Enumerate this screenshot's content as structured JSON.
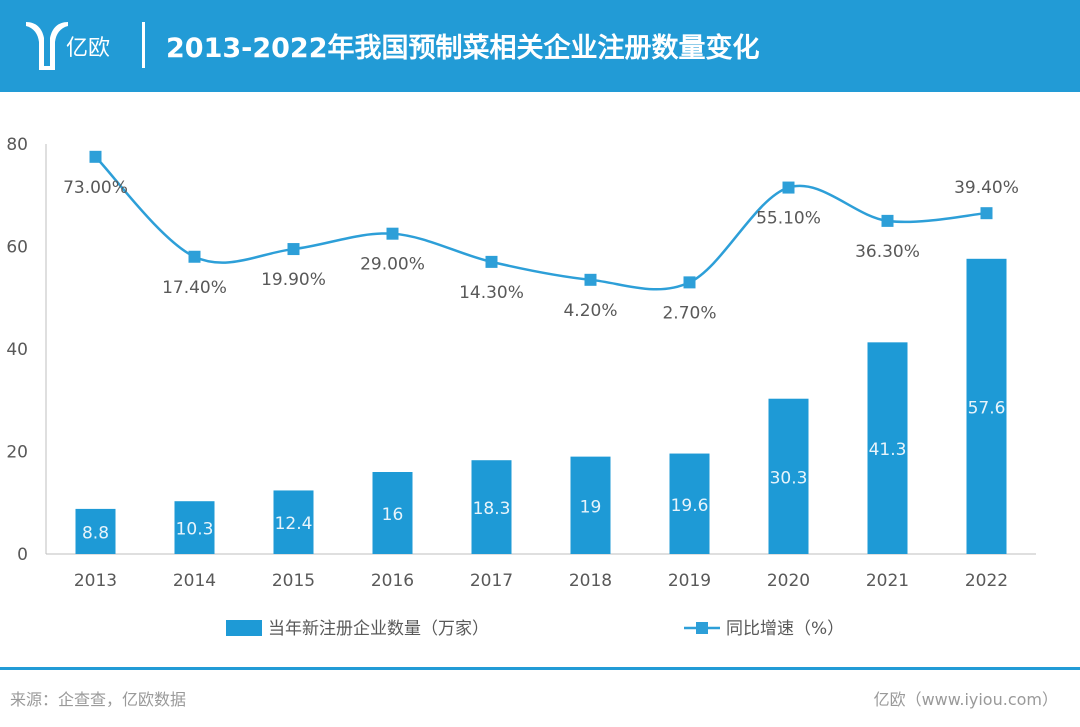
{
  "header": {
    "logo_text": "亿欧",
    "title": "2013-2022年我国预制菜相关企业注册数量变化"
  },
  "footer": {
    "source": "来源：企查查，亿欧数据",
    "site": "亿欧（www.iyiou.com）"
  },
  "colors": {
    "accent": "#229bd6",
    "bar": "#1e9ad6",
    "line": "#2d9fd8",
    "axis_text": "#595959",
    "label_text": "#595959"
  },
  "chart_data": {
    "type": "bar",
    "categories": [
      "2013",
      "2014",
      "2015",
      "2016",
      "2017",
      "2018",
      "2019",
      "2020",
      "2021",
      "2022"
    ],
    "ylim": [
      0,
      80
    ],
    "yticks": [
      "0",
      "20",
      "40",
      "60",
      "80"
    ],
    "series": [
      {
        "name": "当年新注册企业数量（万家）",
        "type": "bar",
        "values": [
          8.8,
          10.3,
          12.4,
          16,
          18.3,
          19,
          19.6,
          30.3,
          41.3,
          57.6
        ],
        "labels": [
          "8.8",
          "10.3",
          "12.4",
          "16",
          "18.3",
          "19",
          "19.6",
          "30.3",
          "41.3",
          "57.6"
        ]
      },
      {
        "name": "同比增速（%）",
        "type": "line",
        "values": [
          73.0,
          17.4,
          19.9,
          29.0,
          14.3,
          4.2,
          2.7,
          55.1,
          36.3,
          39.4
        ],
        "labels": [
          "73.00%",
          "17.40%",
          "19.90%",
          "29.00%",
          "14.30%",
          "4.20%",
          "2.70%",
          "55.10%",
          "36.30%",
          "39.40%"
        ],
        "plotted_on_left_axis": [
          77.5,
          58,
          59.5,
          62.5,
          57,
          53.5,
          53,
          71.5,
          65,
          66.5
        ]
      }
    ],
    "legend_position": "bottom",
    "grid": false
  }
}
